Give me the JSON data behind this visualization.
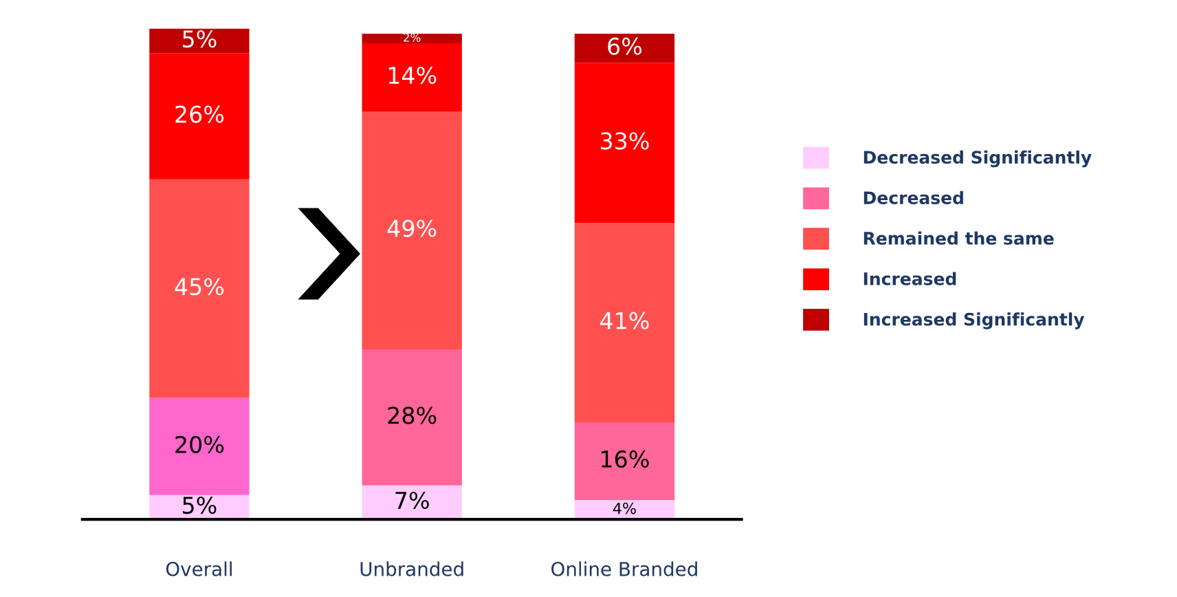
{
  "chart_data": {
    "type": "bar",
    "stacked": true,
    "legend": "right",
    "grid": false,
    "categories": [
      "Overall",
      "Unbranded",
      "Online Branded"
    ],
    "series": [
      {
        "name": "Decreased Significantly",
        "color": "#ffccff",
        "values": [
          5,
          7,
          4
        ],
        "value_labels": [
          "5%",
          "7%",
          "4%"
        ]
      },
      {
        "name": "Decreased",
        "color": "#ff6699",
        "colors": [
          "#ff66cc",
          "#ff6699",
          "#ff6699"
        ],
        "values": [
          20,
          28,
          16
        ],
        "value_labels": [
          "20%",
          "28%",
          "16%"
        ]
      },
      {
        "name": "Remained the same",
        "color": "#ff5050",
        "values": [
          45,
          49,
          41
        ],
        "value_labels": [
          "45%",
          "49%",
          "41%"
        ]
      },
      {
        "name": "Increased",
        "color": "#ff0000",
        "values": [
          26,
          14,
          33
        ],
        "value_labels": [
          "26%",
          "14%",
          "33%"
        ]
      },
      {
        "name": "Increased Significantly",
        "color": "#c00000",
        "values": [
          5,
          2,
          6
        ],
        "value_labels": [
          "5%",
          "2%",
          "6%"
        ]
      }
    ]
  }
}
